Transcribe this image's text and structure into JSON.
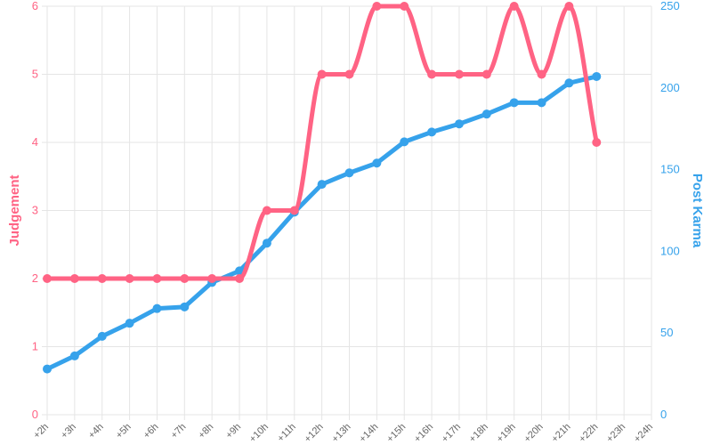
{
  "chart_data": {
    "type": "line",
    "x": [
      "+2h",
      "+3h",
      "+4h",
      "+5h",
      "+6h",
      "+7h",
      "+8h",
      "+9h",
      "+10h",
      "+11h",
      "+12h",
      "+13h",
      "+14h",
      "+15h",
      "+16h",
      "+17h",
      "+18h",
      "+19h",
      "+20h",
      "+21h",
      "+22h",
      "+23h",
      "+24h"
    ],
    "series": [
      {
        "name": "Judgement",
        "axis": "left",
        "color": "#ff6384",
        "smooth": true,
        "values": [
          2,
          2,
          2,
          2,
          2,
          2,
          2,
          2,
          3,
          3,
          5,
          5,
          6,
          6,
          5,
          5,
          5,
          6,
          5,
          6,
          4,
          null,
          null
        ]
      },
      {
        "name": "Post Karma",
        "axis": "right",
        "color": "#36a2eb",
        "smooth": false,
        "values": [
          28,
          36,
          48,
          56,
          65,
          66,
          81,
          88,
          105,
          124,
          141,
          148,
          154,
          167,
          173,
          178,
          184,
          191,
          191,
          203,
          207,
          null,
          null
        ]
      }
    ],
    "y_left": {
      "label": "Judgement",
      "min": 0,
      "max": 6,
      "ticks": [
        "0",
        "1",
        "2",
        "3",
        "4",
        "5",
        "6"
      ]
    },
    "y_right": {
      "label": "Post Karma",
      "min": 0,
      "max": 250,
      "ticks": [
        "0",
        "50",
        "100",
        "150",
        "200",
        "250"
      ]
    },
    "grid": true
  },
  "colors": {
    "left_axis": "#ff6384",
    "right_axis": "#36a2eb",
    "grid": "#e5e5e5",
    "x_ticks": "#666666"
  }
}
